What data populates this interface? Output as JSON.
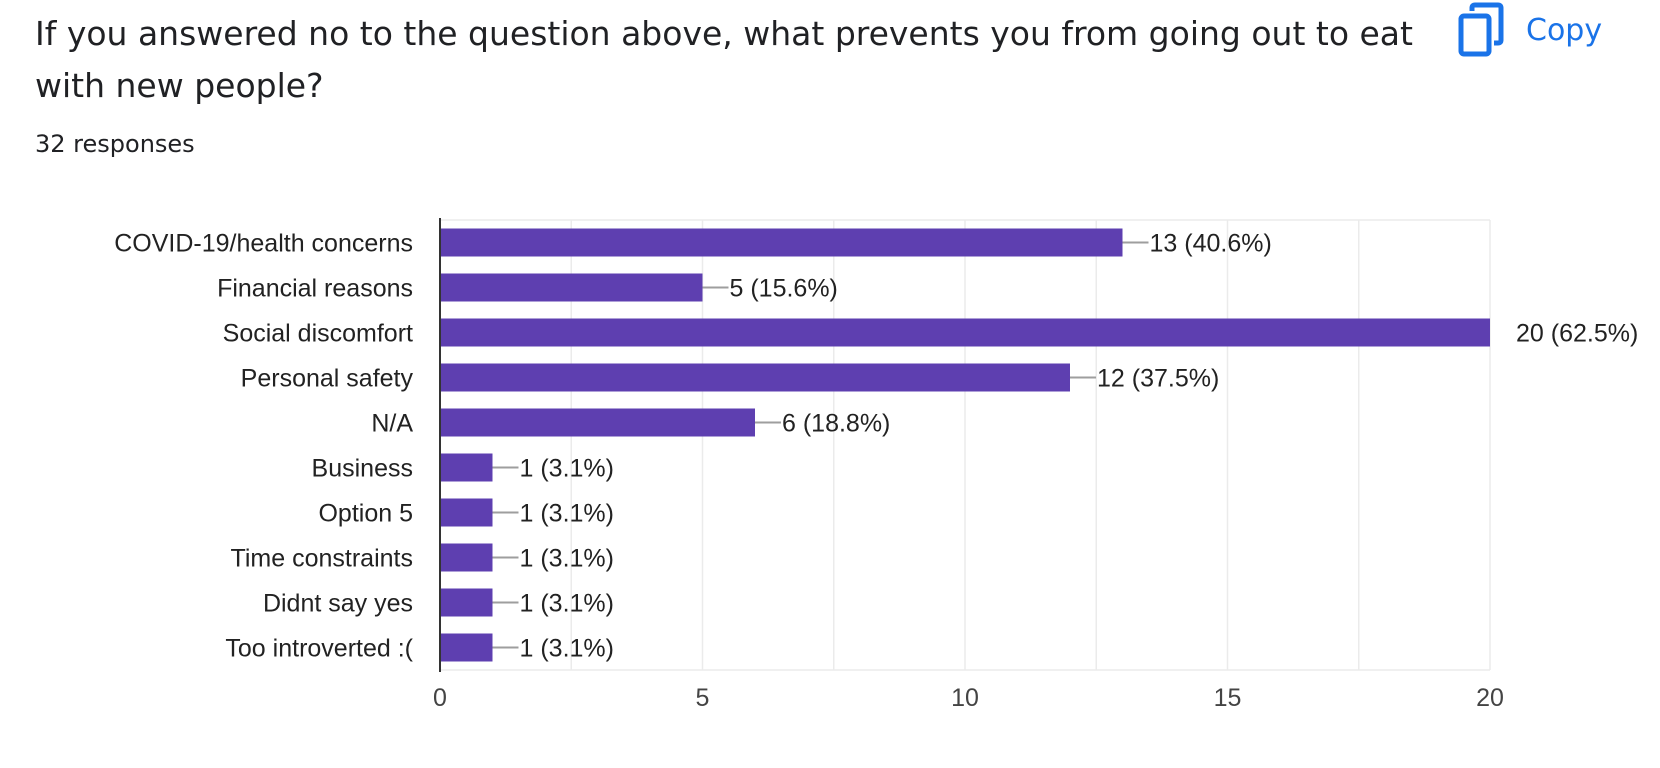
{
  "header": {
    "question": "If you answered no to the question above, what prevents you from going out to eat with new people?",
    "responses": "32 responses",
    "copy_label": "Copy",
    "copy_icon": "copy-icon"
  },
  "colors": {
    "bar": "#5e3fb0",
    "accent": "#1a73e8",
    "leader": "#9e9e9e",
    "grid": "#ebebeb"
  },
  "chart_data": {
    "type": "bar",
    "orientation": "horizontal",
    "categories": [
      "COVID-19/health concerns",
      "Financial reasons",
      "Social discomfort",
      "Personal safety",
      "N/A",
      "Business",
      "Option 5",
      "Time constraints",
      "Didnt say yes",
      "Too introverted :("
    ],
    "values": [
      13,
      5,
      20,
      12,
      6,
      1,
      1,
      1,
      1,
      1
    ],
    "labels": [
      "13 (40.6%)",
      "5 (15.6%)",
      "20 (62.5%)",
      "12 (37.5%)",
      "6 (18.8%)",
      "1 (3.1%)",
      "1 (3.1%)",
      "1 (3.1%)",
      "1 (3.1%)",
      "1 (3.1%)"
    ],
    "xlim": [
      0,
      20
    ],
    "xticks": [
      "0",
      "5",
      "10",
      "15",
      "20"
    ],
    "grid": true,
    "legend": "none"
  }
}
